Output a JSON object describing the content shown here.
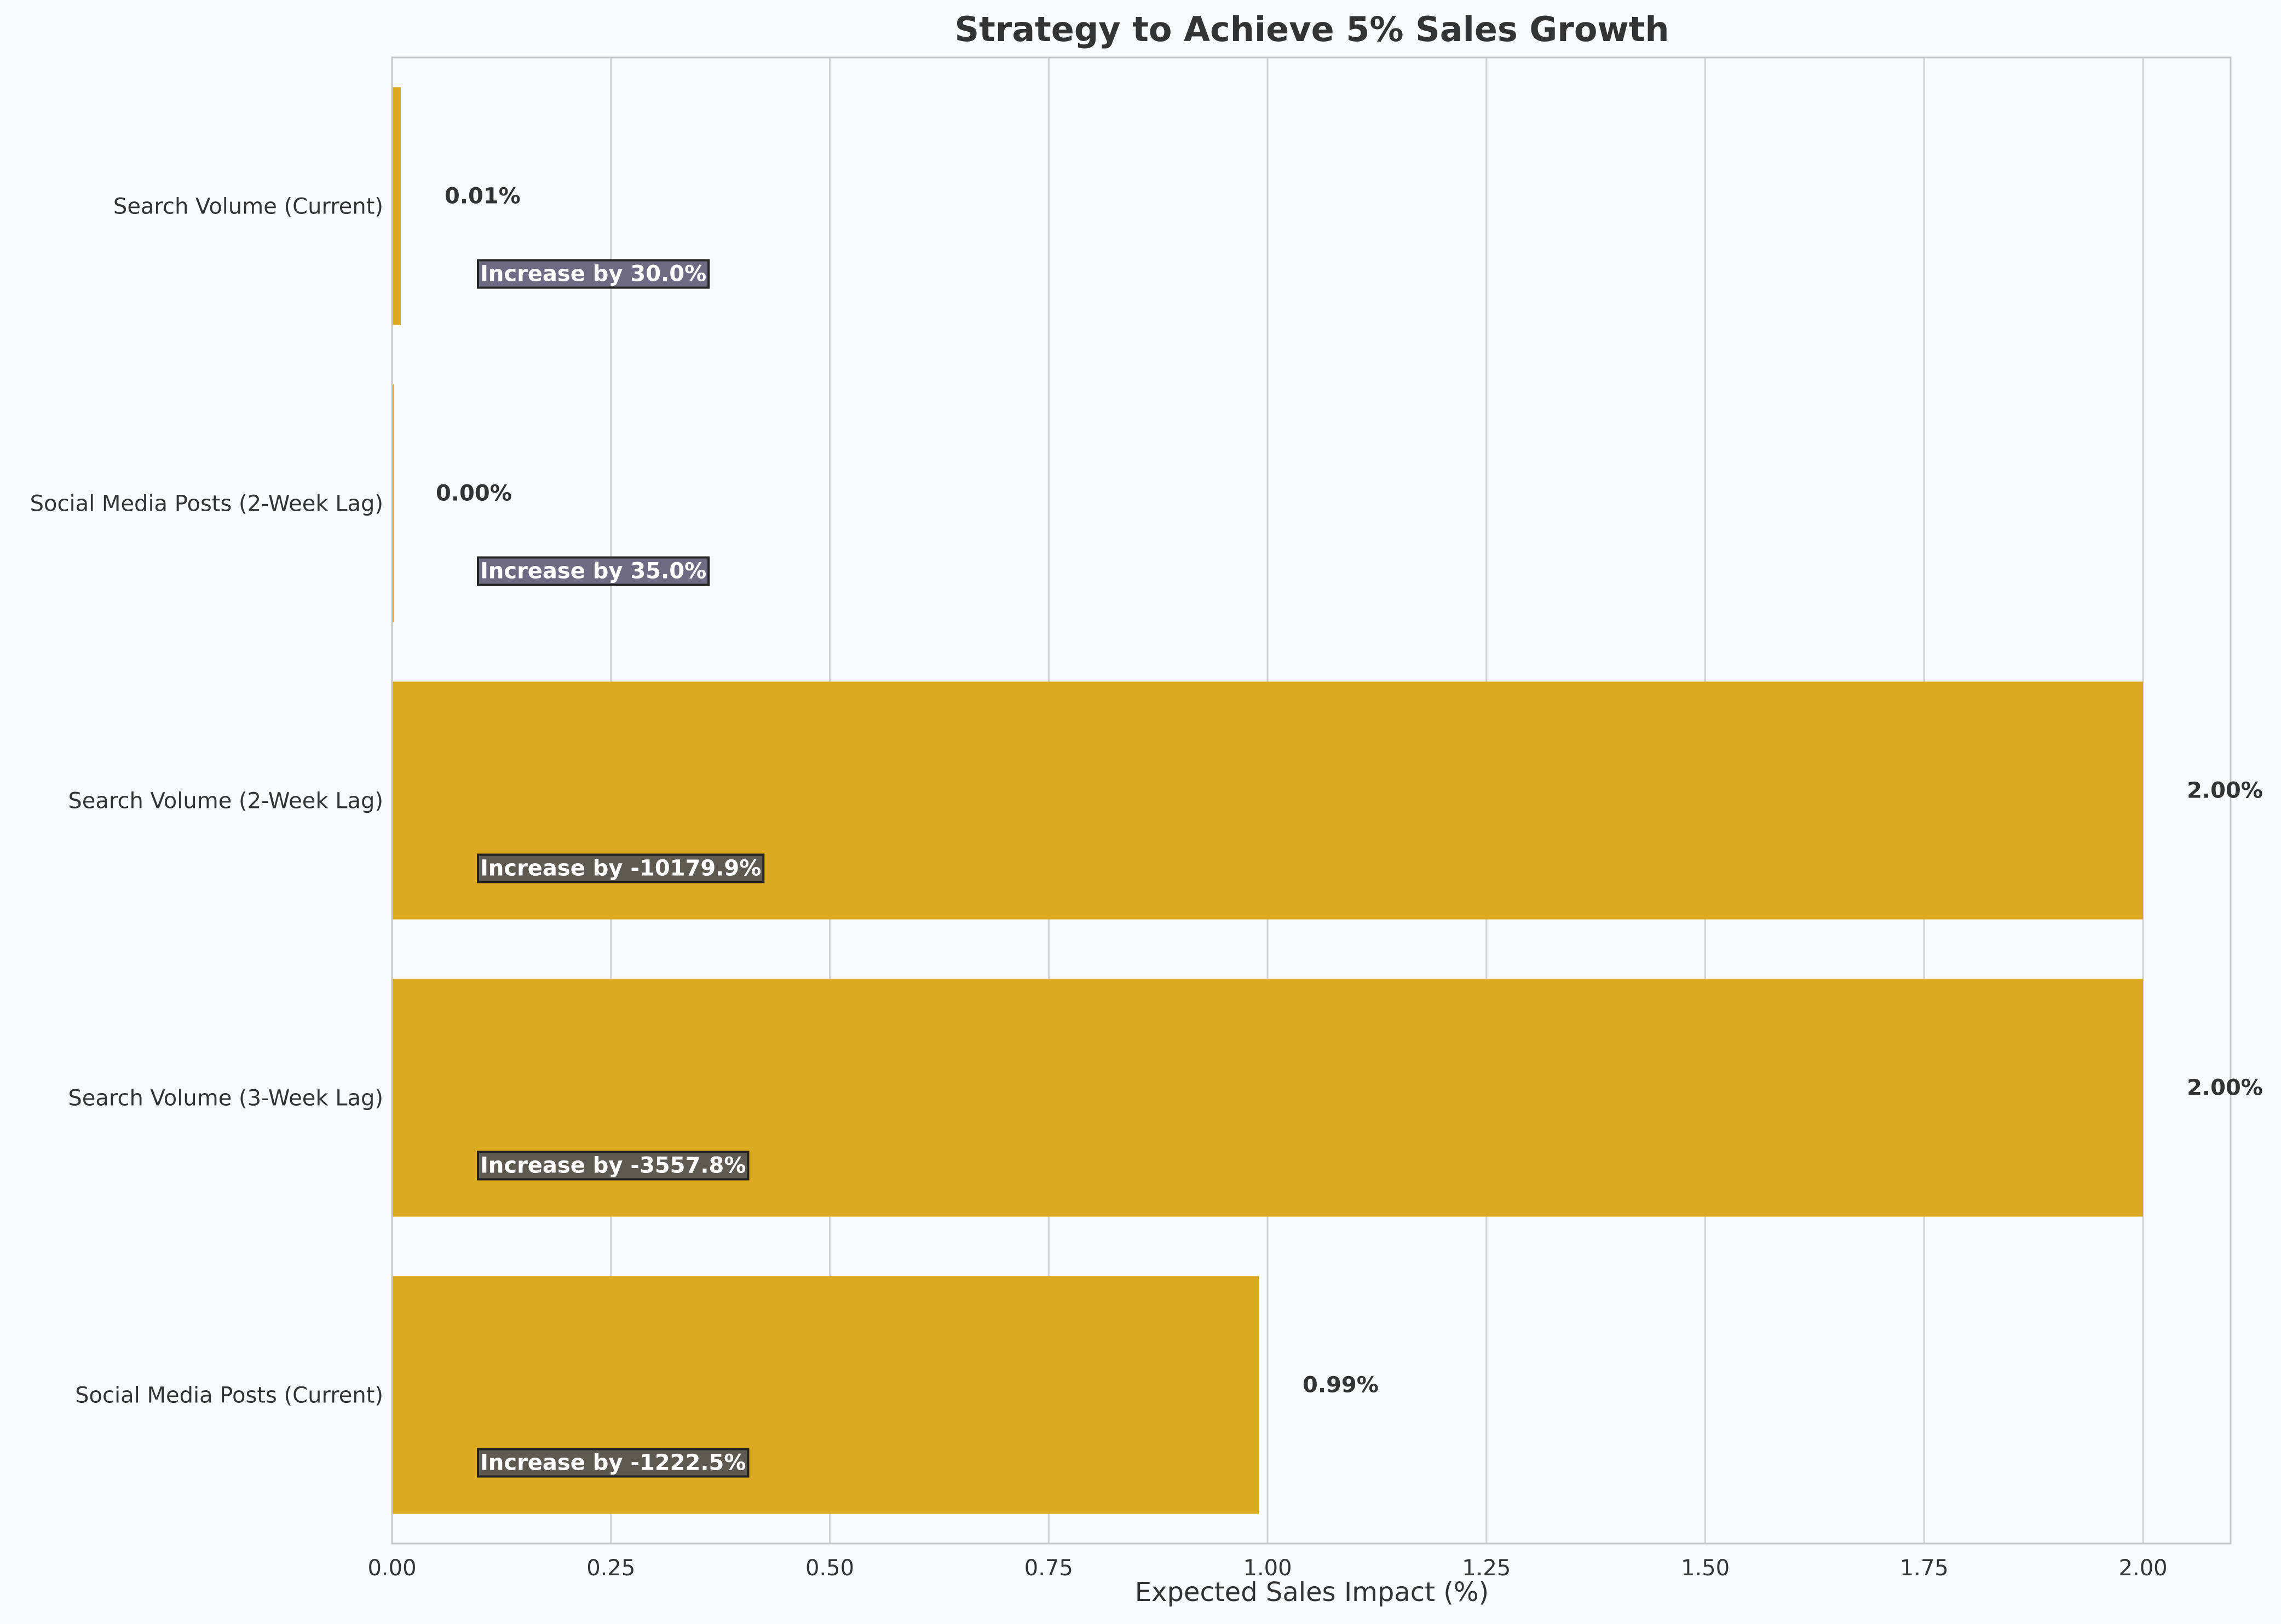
{
  "chart_data": {
    "type": "bar",
    "orientation": "horizontal",
    "title": "Strategy to Achieve 5% Sales Growth",
    "xlabel": "Expected Sales Impact (%)",
    "ylabel": "",
    "xlim": [
      0,
      2.1
    ],
    "xticks": [
      "0.00",
      "0.25",
      "0.50",
      "0.75",
      "1.00",
      "1.25",
      "1.50",
      "1.75",
      "2.00"
    ],
    "grid": "vertical",
    "categories": [
      "Search Volume (Current)",
      "Social Media Posts (2-Week Lag)",
      "Search Volume (2-Week Lag)",
      "Search Volume (3-Week Lag)",
      "Social Media Posts (Current)"
    ],
    "values": [
      0.01,
      0.0,
      2.0,
      2.0,
      0.99
    ],
    "value_labels": [
      "0.01%",
      "0.00%",
      "2.00%",
      "2.00%",
      "0.99%"
    ],
    "annotations": [
      "Increase by 30.0%",
      "Increase by 35.0%",
      "Increase by -10179.9%",
      "Increase by -3557.8%",
      "Increase by -1222.5%"
    ],
    "colors": {
      "bar": "#dcaa20",
      "annotation_positive": "#6e6a84",
      "annotation_negative": "#5e5a52",
      "grid": "#d0d0d0",
      "axis": "#c6c6c6",
      "background": "#f8f9fb"
    }
  }
}
